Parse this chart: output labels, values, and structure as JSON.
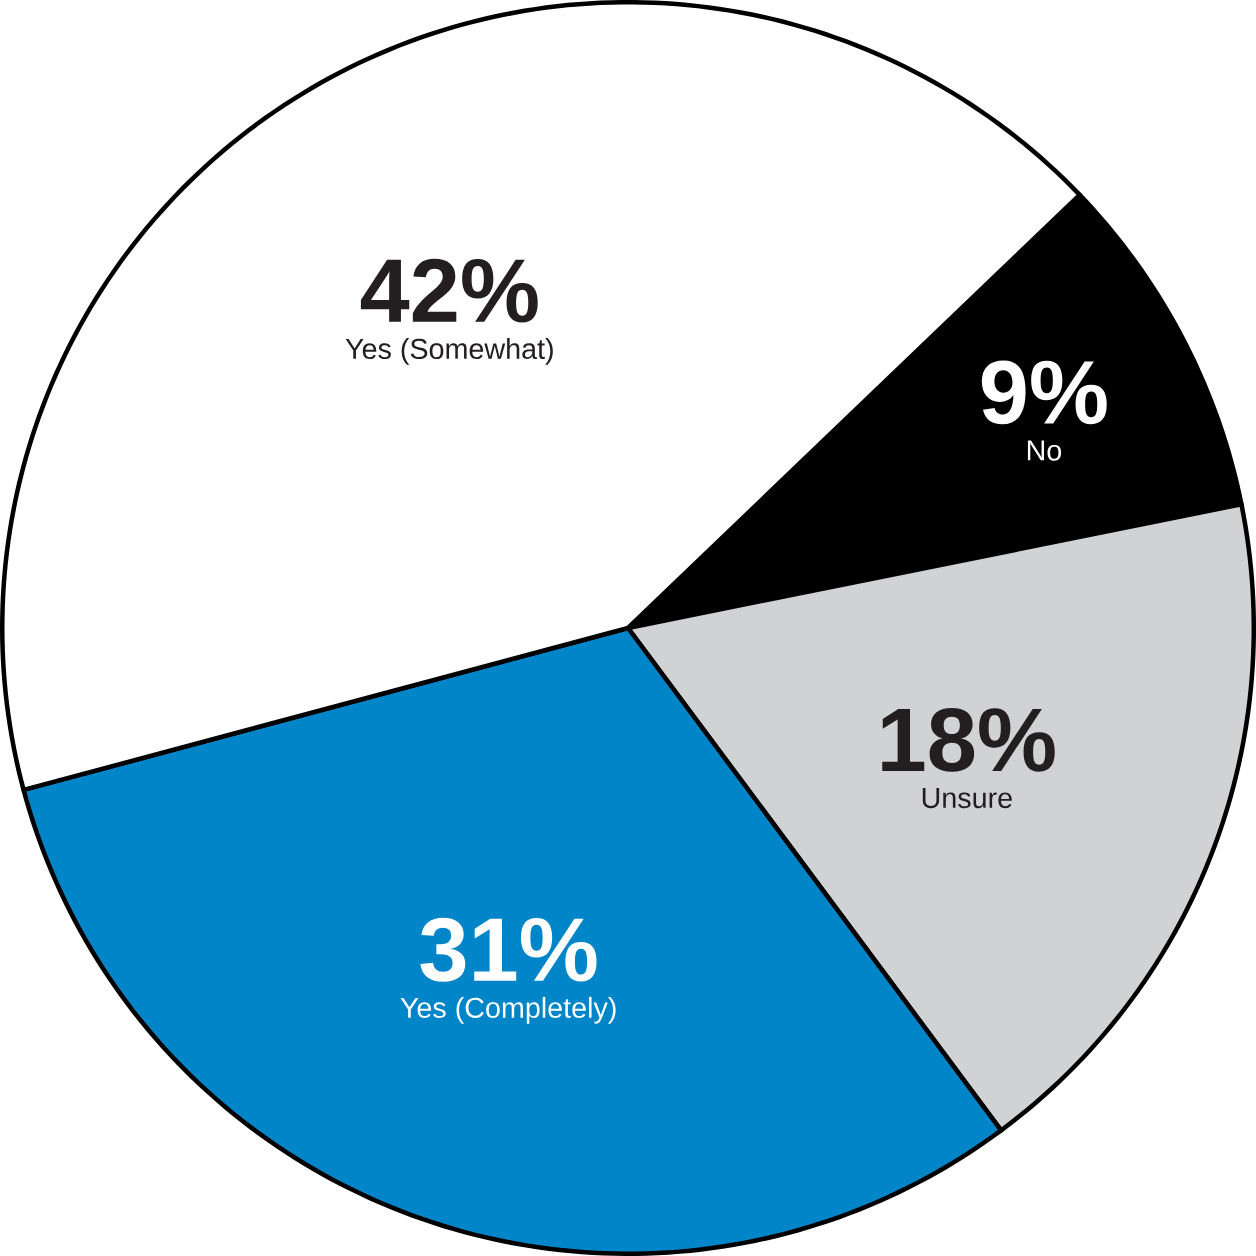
{
  "chart_data": {
    "type": "pie",
    "categories": [
      "No",
      "Unsure",
      "Yes (Completely)",
      "Yes (Somewhat)"
    ],
    "values": [
      9,
      18,
      31,
      42
    ],
    "value_labels": [
      "9%",
      "18%",
      "31%",
      "42%"
    ],
    "colors": [
      "#000000",
      "#d1d2d4",
      "#0085c8",
      "#ffffff"
    ]
  }
}
